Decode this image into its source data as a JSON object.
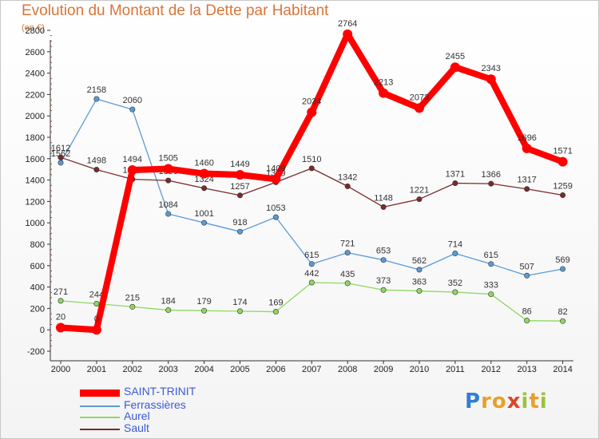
{
  "title": "Evolution du Montant de la Dette par Habitant",
  "subtitle": "(en €)",
  "logo": {
    "text": "Proxiti",
    "letters": [
      {
        "ch": "P",
        "color": "#2f7fd3"
      },
      {
        "ch": "r",
        "color": "#e8a02a"
      },
      {
        "ch": "o",
        "color": "#e8a02a"
      },
      {
        "ch": "x",
        "color": "#e04427"
      },
      {
        "ch": "i",
        "color": "#9ac33c"
      },
      {
        "ch": "t",
        "color": "#e8a02a"
      },
      {
        "ch": "i",
        "color": "#9ac33c"
      }
    ]
  },
  "chart_data": {
    "type": "line",
    "x": [
      "2000",
      "2001",
      "2002",
      "2003",
      "2004",
      "2005",
      "2006",
      "2007",
      "2008",
      "2009",
      "2010",
      "2011",
      "2012",
      "2013",
      "2014"
    ],
    "ylim": [
      -200,
      2800
    ],
    "yticks": [
      -200,
      0,
      200,
      400,
      600,
      800,
      1000,
      1200,
      1400,
      1600,
      1800,
      2000,
      2200,
      2400,
      2600,
      2800
    ],
    "grid": false,
    "legend_position": "bottom-left",
    "series": [
      {
        "name": "SAINT-TRINIT",
        "color": "#ff0000",
        "values": [
          20,
          0,
          1494,
          1505,
          1460,
          1449,
          1409,
          2034,
          2764,
          2213,
          2073,
          2455,
          2343,
          1696,
          1571
        ]
      },
      {
        "name": "Ferrassières",
        "color": "#5b9bd5",
        "values": [
          1562,
          2158,
          2060,
          1084,
          1001,
          918,
          1053,
          615,
          721,
          653,
          562,
          714,
          615,
          507,
          569
        ]
      },
      {
        "name": "Aurel",
        "color": "#8ed860",
        "values": [
          271,
          244,
          215,
          184,
          179,
          174,
          169,
          442,
          435,
          373,
          363,
          352,
          333,
          86,
          82
        ]
      },
      {
        "name": "Sault",
        "color": "#7b2a2a",
        "values": [
          1612,
          1498,
          1407,
          1396,
          1324,
          1257,
          1379,
          1510,
          1342,
          1148,
          1221,
          1371,
          1366,
          1317,
          1259
        ]
      }
    ]
  }
}
